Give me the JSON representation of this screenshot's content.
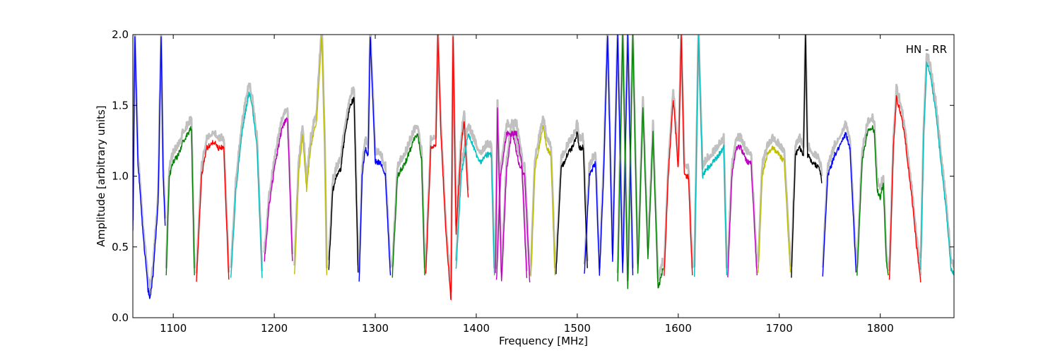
{
  "chart_data": {
    "type": "line",
    "xlabel": "Frequency [MHz]",
    "ylabel": "Amplitude [arbitrary units]",
    "annotation": "HN - RR",
    "xlim": [
      1060,
      1873
    ],
    "ylim": [
      0.0,
      2.0
    ],
    "x_ticks": [
      1100,
      1200,
      1300,
      1400,
      1500,
      1600,
      1700,
      1800
    ],
    "x_tick_labels": [
      "1100",
      "1200",
      "1300",
      "1400",
      "1500",
      "1600",
      "1700",
      "1800"
    ],
    "y_ticks": [
      0.0,
      0.5,
      1.0,
      1.5,
      2.0
    ],
    "y_tick_labels": [
      "0.0",
      "0.5",
      "1.0",
      "1.5",
      "2.0"
    ],
    "grid": false,
    "background_color": "#c0c0c0",
    "series": [
      {
        "color": "#0000ff",
        "x": [
          1060,
          1062,
          1065,
          1070,
          1075,
          1077,
          1080,
          1085,
          1088,
          1090,
          1092
        ],
        "y": [
          0.6,
          2.0,
          1.1,
          0.6,
          0.2,
          0.14,
          0.3,
          0.8,
          2.0,
          1.0,
          0.65
        ]
      },
      {
        "color": "#008000",
        "x": [
          1093,
          1096,
          1100,
          1105,
          1110,
          1115,
          1118,
          1121
        ],
        "y": [
          0.3,
          1.0,
          1.1,
          1.15,
          1.25,
          1.3,
          1.35,
          0.3
        ]
      },
      {
        "color": "#ff0000",
        "x": [
          1123,
          1128,
          1133,
          1140,
          1145,
          1150,
          1155
        ],
        "y": [
          0.26,
          1.0,
          1.2,
          1.25,
          1.2,
          1.2,
          0.27
        ]
      },
      {
        "color": "#00bfbf",
        "x": [
          1157,
          1162,
          1168,
          1175,
          1178,
          1183,
          1188
        ],
        "y": [
          0.27,
          0.9,
          1.3,
          1.6,
          1.5,
          1.2,
          0.28
        ]
      },
      {
        "color": "#bf00bf",
        "x": [
          1190,
          1195,
          1200,
          1208,
          1213,
          1218
        ],
        "y": [
          0.38,
          0.8,
          1.05,
          1.35,
          1.42,
          0.4
        ]
      },
      {
        "color": "#bfbf00",
        "x": [
          1220,
          1224,
          1228,
          1232,
          1236,
          1242,
          1247,
          1250,
          1252
        ],
        "y": [
          0.3,
          1.0,
          1.3,
          0.9,
          1.2,
          1.4,
          2.0,
          1.2,
          0.3
        ]
      },
      {
        "color": "#000000",
        "x": [
          1254,
          1258,
          1262,
          1266,
          1270,
          1275,
          1279,
          1283
        ],
        "y": [
          0.35,
          0.9,
          1.0,
          1.05,
          1.3,
          1.5,
          1.55,
          0.32
        ]
      },
      {
        "color": "#0000ff",
        "x": [
          1284,
          1287,
          1290,
          1293,
          1295,
          1300,
          1305,
          1310,
          1315
        ],
        "y": [
          0.25,
          1.0,
          1.2,
          1.15,
          2.0,
          1.1,
          1.1,
          1.0,
          0.3
        ]
      },
      {
        "color": "#008000",
        "x": [
          1317,
          1322,
          1330,
          1338,
          1342,
          1346,
          1349
        ],
        "y": [
          0.3,
          1.0,
          1.1,
          1.25,
          1.3,
          1.1,
          0.3
        ]
      },
      {
        "color": "#ff0000",
        "x": [
          1350,
          1355,
          1360,
          1362,
          1365,
          1370,
          1375,
          1377,
          1380,
          1385,
          1388,
          1390,
          1392
        ],
        "y": [
          0.3,
          1.2,
          1.22,
          2.0,
          1.3,
          0.6,
          0.12,
          2.0,
          0.6,
          1.2,
          1.4,
          1.1,
          0.85
        ]
      },
      {
        "color": "#00bfbf",
        "x": [
          1380,
          1385,
          1392,
          1400,
          1405,
          1410,
          1415,
          1418
        ],
        "y": [
          0.35,
          1.0,
          1.3,
          1.15,
          1.1,
          1.15,
          1.15,
          0.3
        ]
      },
      {
        "color": "#bf00bf",
        "x": [
          1419,
          1421,
          1425,
          1430,
          1435,
          1440,
          1445,
          1450
        ],
        "y": [
          0.3,
          1.48,
          0.25,
          1.05,
          1.3,
          1.3,
          1.1,
          0.28
        ]
      },
      {
        "color": "#bf00bf",
        "x": [
          1420,
          1424,
          1430,
          1436,
          1442,
          1448,
          1453
        ],
        "y": [
          0.25,
          1.0,
          1.3,
          1.3,
          1.1,
          1.0,
          0.25
        ]
      },
      {
        "color": "#bfbf00",
        "x": [
          1454,
          1458,
          1462,
          1466,
          1470,
          1474,
          1478
        ],
        "y": [
          0.28,
          1.05,
          1.2,
          1.35,
          1.2,
          1.15,
          0.3
        ]
      },
      {
        "color": "#000000",
        "x": [
          1479,
          1484,
          1490,
          1495,
          1500,
          1502,
          1506,
          1510
        ],
        "y": [
          0.32,
          1.05,
          1.15,
          1.2,
          1.3,
          1.2,
          1.2,
          0.35
        ]
      },
      {
        "color": "#0000ff",
        "x": [
          1507,
          1512,
          1518,
          1522,
          1526,
          1530,
          1535,
          1540,
          1545,
          1550,
          1555
        ],
        "y": [
          0.3,
          1.0,
          1.1,
          0.3,
          1.0,
          2.0,
          0.4,
          2.0,
          0.3,
          2.0,
          0.3
        ]
      },
      {
        "color": "#008000",
        "x": [
          1540,
          1545,
          1550,
          1555,
          1560,
          1565,
          1570,
          1575,
          1580,
          1585
        ],
        "y": [
          0.25,
          2.0,
          0.2,
          2.0,
          0.3,
          1.5,
          0.4,
          1.3,
          0.2,
          0.35
        ]
      },
      {
        "color": "#ff0000",
        "x": [
          1586,
          1590,
          1595,
          1600,
          1603,
          1606,
          1610,
          1614
        ],
        "y": [
          0.3,
          1.0,
          1.55,
          1.05,
          2.0,
          1.0,
          1.0,
          0.3
        ]
      },
      {
        "color": "#00bfbf",
        "x": [
          1616,
          1620,
          1624,
          1628,
          1635,
          1640,
          1645,
          1648
        ],
        "y": [
          0.3,
          2.0,
          1.0,
          1.05,
          1.1,
          1.15,
          1.2,
          0.3
        ]
      },
      {
        "color": "#bf00bf",
        "x": [
          1649,
          1653,
          1657,
          1662,
          1668,
          1672,
          1678
        ],
        "y": [
          0.3,
          1.0,
          1.2,
          1.2,
          1.1,
          1.1,
          0.3
        ]
      },
      {
        "color": "#bfbf00",
        "x": [
          1679,
          1683,
          1688,
          1694,
          1700,
          1705,
          1711
        ],
        "y": [
          0.3,
          1.0,
          1.15,
          1.2,
          1.15,
          1.1,
          0.32
        ]
      },
      {
        "color": "#000000",
        "x": [
          1712,
          1716,
          1720,
          1724,
          1726,
          1728,
          1733,
          1740,
          1742
        ],
        "y": [
          0.3,
          1.15,
          1.2,
          1.15,
          2.0,
          1.15,
          1.1,
          1.05,
          0.95
        ]
      },
      {
        "color": "#0000ff",
        "x": [
          1743,
          1748,
          1755,
          1762,
          1766,
          1770,
          1776
        ],
        "y": [
          0.3,
          1.0,
          1.15,
          1.25,
          1.3,
          1.2,
          0.32
        ]
      },
      {
        "color": "#008000",
        "x": [
          1777,
          1782,
          1787,
          1791,
          1794,
          1797,
          1800,
          1803,
          1806,
          1808
        ],
        "y": [
          0.3,
          1.1,
          1.3,
          1.35,
          1.32,
          0.9,
          0.85,
          0.95,
          0.4,
          0.3
        ]
      },
      {
        "color": "#ff0000",
        "x": [
          1809,
          1813,
          1816,
          1820,
          1824,
          1828,
          1832,
          1836,
          1840
        ],
        "y": [
          0.26,
          1.2,
          1.55,
          1.45,
          1.3,
          1.05,
          0.8,
          0.5,
          0.25
        ]
      },
      {
        "color": "#00bfbf",
        "x": [
          1840,
          1843,
          1846,
          1850,
          1855,
          1860,
          1866,
          1870,
          1873
        ],
        "y": [
          0.32,
          1.3,
          1.8,
          1.7,
          1.45,
          1.1,
          0.7,
          0.35,
          0.3
        ]
      }
    ]
  }
}
